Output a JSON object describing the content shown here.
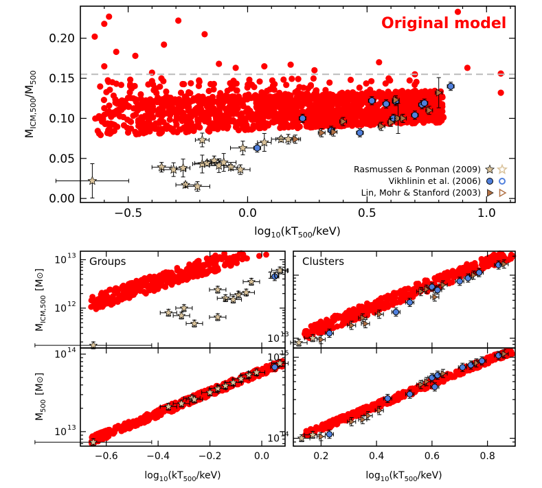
{
  "figure": {
    "top_panel": {
      "annotation": "Original model",
      "ylabel_main": "M",
      "ylabel_sub": "ICM,500",
      "ylabel_sep": "/M",
      "ylabel_sub2": "500",
      "xlabel_main": "log",
      "xlabel_sub": "10",
      "xlabel_rest": "(kT",
      "xlabel_sub2": "500",
      "xlabel_end": "/keV)",
      "xticks": [
        "−0.5",
        "0.0",
        "0.5",
        "1.0"
      ],
      "yticks": [
        "0.00",
        "0.05",
        "0.10",
        "0.15",
        "0.20"
      ],
      "legend": [
        {
          "label": "Rasmussen & Ponman (2009)",
          "marker": "star"
        },
        {
          "label": "Vikhlinin et al. (2006)",
          "marker": "circle"
        },
        {
          "label": "Lin, Mohr & Stanford (2003)",
          "marker": "triangle"
        }
      ]
    },
    "groups_top": {
      "label": "Groups",
      "yticks": [
        "10",
        "10"
      ],
      "yexp": [
        "12",
        "13"
      ]
    },
    "clusters_top": {
      "label": "Clusters",
      "yticks": [
        "10",
        "10"
      ],
      "yexp": [
        "13",
        "14"
      ]
    },
    "groups_bottom": {
      "yticks": [
        "10",
        "10"
      ],
      "yexp": [
        "13",
        "14"
      ],
      "xticks": [
        "−0.6",
        "−0.4",
        "−0.2",
        "0.0"
      ]
    },
    "clusters_bottom": {
      "yticks": [
        "10",
        "10"
      ],
      "yexp": [
        "14",
        "15"
      ],
      "xticks": [
        "0.2",
        "0.4",
        "0.6",
        "0.8"
      ]
    },
    "left_ylabel_top": {
      "main": "M",
      "sub": "ICM,500",
      "unit": "[M",
      "unit_end": "]"
    },
    "left_ylabel_bottom": {
      "main": "M",
      "sub": "500",
      "unit": "[M",
      "unit_end": "]"
    },
    "bottom_xlabel": {
      "main": "log",
      "sub": "10",
      "rest": "(kT",
      "sub2": "500",
      "end": "/keV)"
    }
  },
  "colors": {
    "model": "#ff0000",
    "vikhlinin": "#4f7fdc",
    "rasmussen": "#d9c29a",
    "lin": "#b07044",
    "dashed": "#bbbbbb"
  },
  "chart_data": [
    {
      "type": "scatter",
      "panel": "top",
      "xlim": [
        -0.7,
        1.12
      ],
      "ylim": [
        -0.005,
        0.24
      ],
      "reference_line_y": 0.155,
      "series": [
        {
          "name": "Original model",
          "points_generated_band": {
            "x_range": [
              -0.64,
              0.82
            ],
            "y_low_at_xmin": 0.078,
            "y_high_at_xmin": 0.125,
            "y_low_at_xmax": 0.095,
            "y_high_at_xmax": 0.135
          },
          "outliers": [
            [
              -0.58,
              0.227
            ],
            [
              -0.6,
              0.218
            ],
            [
              -0.64,
              0.202
            ],
            [
              -0.55,
              0.183
            ],
            [
              -0.47,
              0.178
            ],
            [
              -0.29,
              0.222
            ],
            [
              -0.18,
              0.205
            ],
            [
              -0.12,
              0.168
            ],
            [
              -0.05,
              0.163
            ],
            [
              0.07,
              0.165
            ],
            [
              0.18,
              0.167
            ],
            [
              0.55,
              0.17
            ],
            [
              0.7,
              0.155
            ],
            [
              0.88,
              0.233
            ],
            [
              1.06,
              0.156
            ],
            [
              1.06,
              0.132
            ],
            [
              0.92,
              0.163
            ],
            [
              -0.4,
              0.157
            ],
            [
              -0.6,
              0.165
            ],
            [
              0.28,
              0.16
            ],
            [
              -0.35,
              0.192
            ]
          ]
        },
        {
          "name": "Rasmussen & Ponman (2009)",
          "points": [
            [
              -0.65,
              0.022
            ],
            [
              -0.36,
              0.039
            ],
            [
              -0.31,
              0.036
            ],
            [
              -0.27,
              0.038
            ],
            [
              -0.26,
              0.017
            ],
            [
              -0.21,
              0.015
            ],
            [
              -0.19,
              0.073
            ],
            [
              -0.19,
              0.043
            ],
            [
              -0.17,
              0.044
            ],
            [
              -0.14,
              0.047
            ],
            [
              -0.12,
              0.041
            ],
            [
              -0.1,
              0.045
            ],
            [
              -0.07,
              0.039
            ],
            [
              -0.03,
              0.036
            ],
            [
              -0.02,
              0.063
            ],
            [
              0.07,
              0.07
            ],
            [
              0.14,
              0.074
            ],
            [
              0.17,
              0.074
            ]
          ]
        },
        {
          "name": "Vikhlinin et al. (2006)",
          "points": [
            [
              0.04,
              0.063
            ],
            [
              0.23,
              0.1
            ],
            [
              0.35,
              0.085
            ],
            [
              0.47,
              0.082
            ],
            [
              0.52,
              0.122
            ],
            [
              0.58,
              0.118
            ],
            [
              0.61,
              0.1
            ],
            [
              0.62,
              0.121
            ],
            [
              0.7,
              0.104
            ],
            [
              0.73,
              0.117
            ],
            [
              0.74,
              0.119
            ],
            [
              0.85,
              0.14
            ]
          ]
        },
        {
          "name": "Lin, Mohr & Stanford (2003)",
          "points": [
            [
              0.2,
              0.074
            ],
            [
              0.31,
              0.082
            ],
            [
              0.36,
              0.083
            ],
            [
              0.4,
              0.096
            ],
            [
              0.56,
              0.09
            ],
            [
              0.6,
              0.095
            ],
            [
              0.63,
              0.1
            ],
            [
              0.65,
              0.1
            ],
            [
              0.76,
              0.11
            ],
            [
              0.8,
              0.132
            ],
            [
              0.62,
              0.123
            ]
          ]
        }
      ]
    },
    {
      "type": "scatter",
      "panel": "groups-top",
      "xlim": [
        -0.7,
        0.09
      ],
      "ylog": true,
      "ylim": [
        150000000000.0,
        15000000000000.0
      ]
    },
    {
      "type": "scatter",
      "panel": "clusters-top",
      "xlim": [
        0.1,
        0.9
      ],
      "ylog": true,
      "ylim": [
        7000000000000.0,
        240000000000000.0
      ]
    },
    {
      "type": "scatter",
      "panel": "groups-bottom",
      "xlim": [
        -0.7,
        0.09
      ],
      "ylog": true,
      "ylim": [
        6500000000000.0,
        120000000000000.0
      ]
    },
    {
      "type": "scatter",
      "panel": "clusters-bottom",
      "xlim": [
        0.1,
        0.9
      ],
      "ylog": true,
      "ylim": [
        80000000000000.0,
        1300000000000000.0
      ]
    }
  ]
}
